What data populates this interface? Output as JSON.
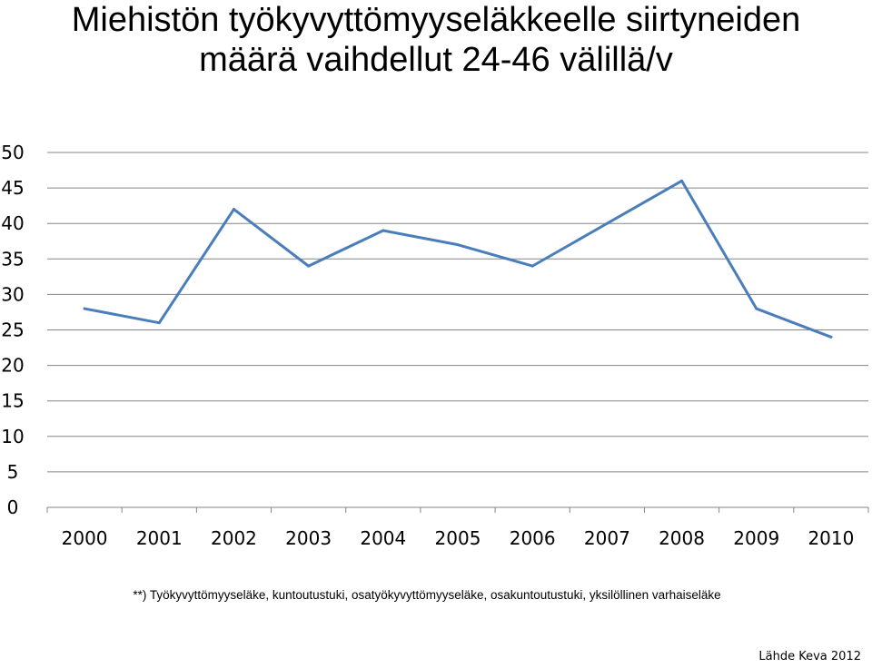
{
  "slide": {
    "title_line1": "Miehistön työkyvyttömyyseläkkeelle siirtyneiden",
    "title_line2": "määrä vaihdellut 24-46 välillä/v",
    "footnote": "**) Työkyvyttömyyseläke, kuntoutustuki, osatyökyvyttömyyseläke, osakuntoutustuki, yksilöllinen varhaiseläke",
    "source": "Lähde Keva 2012"
  },
  "chart_data": {
    "type": "line",
    "title": "",
    "xlabel": "",
    "ylabel": "",
    "categories": [
      "2000",
      "2001",
      "2002",
      "2003",
      "2004",
      "2005",
      "2006",
      "2007",
      "2008",
      "2009",
      "2010"
    ],
    "series": [
      {
        "values": [
          28,
          26,
          42,
          34,
          39,
          37,
          34,
          40,
          46,
          28,
          24
        ]
      }
    ],
    "ylim": [
      0,
      50
    ],
    "yticks": [
      0,
      5,
      10,
      15,
      20,
      25,
      30,
      35,
      40,
      45,
      50
    ],
    "grid": true,
    "legend": "none",
    "colors": {
      "line": "#4a7ebb",
      "grid": "#868686"
    }
  }
}
